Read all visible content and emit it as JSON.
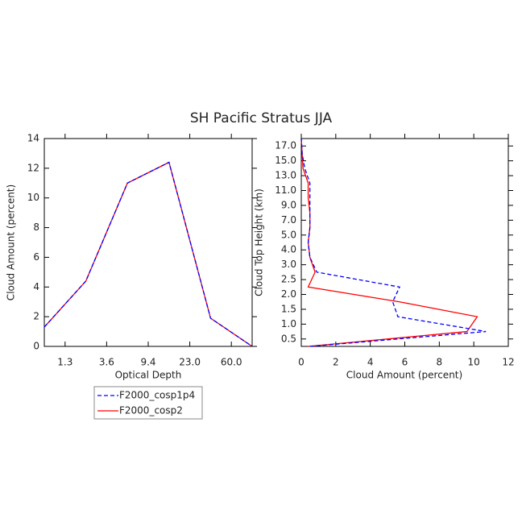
{
  "chart_data": [
    {
      "type": "line",
      "title": "SH Pacific Stratus JJA",
      "xlabel": "Optical Depth",
      "ylabel": "Cloud Amount (percent)",
      "xlim": [
        0,
        5
      ],
      "xticks": [
        {
          "value": 0.5,
          "label": "1.3"
        },
        {
          "value": 1.5,
          "label": "3.6"
        },
        {
          "value": 2.5,
          "label": "9.4"
        },
        {
          "value": 3.5,
          "label": "23.0"
        },
        {
          "value": 4.5,
          "label": "60.0"
        }
      ],
      "ylim": [
        0,
        14
      ],
      "yticks": [
        0,
        2,
        4,
        6,
        8,
        10,
        12,
        14
      ],
      "series": [
        {
          "name": "F2000_cosp2",
          "color": "#ff0000",
          "dashed": false,
          "values": [
            1.3,
            4.4,
            11.0,
            12.4,
            1.9,
            0.0
          ]
        },
        {
          "name": "F2000_cosp1p4",
          "color": "#0000ff",
          "dashed": true,
          "values": [
            1.3,
            4.4,
            11.0,
            12.4,
            1.9,
            0.0
          ]
        }
      ],
      "legend_order": [
        1,
        0
      ]
    },
    {
      "type": "hline",
      "xlabel": "Cloud Amount (percent)",
      "ylabel": "Cloud Top Height (km)",
      "xlim": [
        0,
        12
      ],
      "xticks": [
        0,
        2,
        4,
        6,
        8,
        10,
        12
      ],
      "ylim": [
        0,
        14
      ],
      "yticks": [
        {
          "value": 0.5,
          "label": "0.5"
        },
        {
          "value": 1.5,
          "label": "1.0"
        },
        {
          "value": 2.5,
          "label": "1.5"
        },
        {
          "value": 3.5,
          "label": "2.0"
        },
        {
          "value": 4.5,
          "label": "2.5"
        },
        {
          "value": 5.5,
          "label": "3.0"
        },
        {
          "value": 6.5,
          "label": "4.0"
        },
        {
          "value": 7.5,
          "label": "5.0"
        },
        {
          "value": 8.5,
          "label": "7.0"
        },
        {
          "value": 9.5,
          "label": "9.0"
        },
        {
          "value": 10.5,
          "label": "11.0"
        },
        {
          "value": 11.5,
          "label": "13.0"
        },
        {
          "value": 12.5,
          "label": "15.0"
        },
        {
          "value": 13.5,
          "label": "17.0"
        }
      ],
      "series": [
        {
          "color": "#ff0000",
          "dashed": false,
          "values": [
            0.4,
            9.6,
            10.2,
            5.7,
            0.4,
            0.8,
            0.5,
            0.4,
            0.5,
            0.5,
            0.4,
            0.4,
            0.1,
            0.05,
            0
          ]
        },
        {
          "color": "#0000ff",
          "dashed": true,
          "values": [
            0.5,
            10.7,
            5.6,
            5.3,
            5.7,
            0.9,
            0.5,
            0.4,
            0.5,
            0.5,
            0.5,
            0.5,
            0.2,
            0.05,
            0
          ]
        }
      ]
    }
  ]
}
